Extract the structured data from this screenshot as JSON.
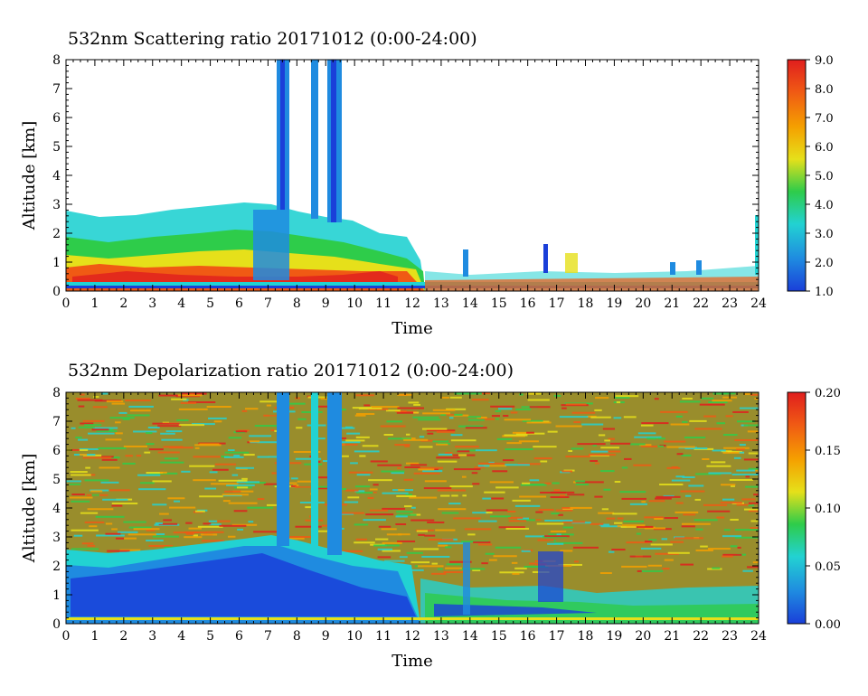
{
  "chart_data": [
    {
      "type": "heatmap",
      "title": "532nm Scattering ratio  20171012 (0:00-24:00)",
      "xlabel": "Time",
      "ylabel": "Altitude [km]",
      "xlim": [
        0,
        24
      ],
      "ylim": [
        0,
        8
      ],
      "x_ticks": [
        "0",
        "1",
        "2",
        "3",
        "4",
        "5",
        "6",
        "7",
        "8",
        "9",
        "10",
        "11",
        "12",
        "13",
        "14",
        "15",
        "16",
        "17",
        "18",
        "19",
        "20",
        "21",
        "22",
        "23",
        "24"
      ],
      "y_ticks": [
        "0",
        "1",
        "2",
        "3",
        "4",
        "5",
        "6",
        "7",
        "8"
      ],
      "colorbar": {
        "range": [
          1.0,
          9.0
        ],
        "ticks": [
          "1.0",
          "2.0",
          "3.0",
          "4.0",
          "5.0",
          "6.0",
          "7.0",
          "8.0",
          "9.0"
        ]
      },
      "colormap": [
        "#1a3fd9",
        "#1f8be0",
        "#22d2d2",
        "#2ecc4a",
        "#e6e01a",
        "#f5a000",
        "#f05a14",
        "#e01e1e"
      ],
      "background": "#ffffff"
    },
    {
      "type": "heatmap",
      "title": "532nm Depolarization ratio  20171012 (0:00-24:00)",
      "xlabel": "Time",
      "ylabel": "Altitude [km]",
      "xlim": [
        0,
        24
      ],
      "ylim": [
        0,
        8
      ],
      "x_ticks": [
        "0",
        "1",
        "2",
        "3",
        "4",
        "5",
        "6",
        "7",
        "8",
        "9",
        "10",
        "11",
        "12",
        "13",
        "14",
        "15",
        "16",
        "17",
        "18",
        "19",
        "20",
        "21",
        "22",
        "23",
        "24"
      ],
      "y_ticks": [
        "0",
        "1",
        "2",
        "3",
        "4",
        "5",
        "6",
        "7",
        "8"
      ],
      "colorbar": {
        "range": [
          0.0,
          0.2
        ],
        "ticks": [
          "0.00",
          "0.05",
          "0.10",
          "0.15",
          "0.20"
        ]
      },
      "colormap": [
        "#1a3fd9",
        "#1f8be0",
        "#22d2d2",
        "#2ecc4a",
        "#e6e01a",
        "#f5a000",
        "#f05a14",
        "#e01e1e"
      ]
    }
  ]
}
